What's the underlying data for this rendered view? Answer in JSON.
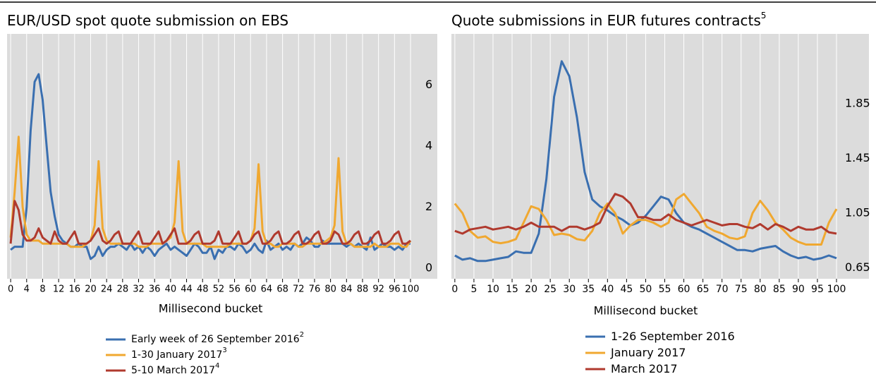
{
  "chart_data": [
    {
      "type": "line",
      "title": "EUR/USD spot quote submission on EBS",
      "x_label": "Millisecond bucket",
      "x": [
        0,
        1,
        2,
        3,
        4,
        5,
        6,
        7,
        8,
        9,
        10,
        11,
        12,
        13,
        14,
        15,
        16,
        17,
        18,
        19,
        20,
        21,
        22,
        23,
        24,
        25,
        26,
        27,
        28,
        29,
        30,
        31,
        32,
        33,
        34,
        35,
        36,
        37,
        38,
        39,
        40,
        41,
        42,
        43,
        44,
        45,
        46,
        47,
        48,
        49,
        50,
        51,
        52,
        53,
        54,
        55,
        56,
        57,
        58,
        59,
        60,
        61,
        62,
        63,
        64,
        65,
        66,
        67,
        68,
        69,
        70,
        71,
        72,
        73,
        74,
        75,
        76,
        77,
        78,
        79,
        80,
        81,
        82,
        83,
        84,
        85,
        86,
        87,
        88,
        89,
        90,
        91,
        92,
        93,
        94,
        95,
        96,
        97,
        98,
        99,
        100
      ],
      "series": [
        {
          "name": "Early week of 26 September 2016",
          "footnote": "2",
          "color": "#3a6fb0",
          "values": [
            0.6,
            0.7,
            0.7,
            0.7,
            2.0,
            4.5,
            6.1,
            6.35,
            5.5,
            4.0,
            2.5,
            1.7,
            1.1,
            0.9,
            0.8,
            0.7,
            0.7,
            0.8,
            0.7,
            0.7,
            0.3,
            0.4,
            0.7,
            0.4,
            0.6,
            0.7,
            0.7,
            0.8,
            0.7,
            0.6,
            0.8,
            0.6,
            0.7,
            0.5,
            0.7,
            0.6,
            0.4,
            0.6,
            0.7,
            0.8,
            0.6,
            0.7,
            0.6,
            0.5,
            0.4,
            0.6,
            0.8,
            0.7,
            0.5,
            0.5,
            0.7,
            0.3,
            0.6,
            0.5,
            0.7,
            0.7,
            0.6,
            0.8,
            0.7,
            0.5,
            0.6,
            0.8,
            0.6,
            0.5,
            0.9,
            0.6,
            0.7,
            0.8,
            0.6,
            0.7,
            0.6,
            0.8,
            0.7,
            0.8,
            1.0,
            0.9,
            0.7,
            0.7,
            0.9,
            0.8,
            0.8,
            0.8,
            0.8,
            0.8,
            0.7,
            0.8,
            0.7,
            0.8,
            0.7,
            0.6,
            1.0,
            0.6,
            0.7,
            0.8,
            0.7,
            0.7,
            0.6,
            0.7,
            0.6,
            0.8,
            0.8
          ]
        },
        {
          "name": "1-30 January 2017",
          "footnote": "3",
          "color": "#f0a830",
          "values": [
            1.0,
            2.5,
            4.3,
            2.0,
            1.1,
            0.9,
            0.9,
            0.9,
            0.8,
            0.8,
            0.8,
            0.8,
            0.8,
            0.8,
            0.8,
            0.7,
            0.7,
            0.7,
            0.7,
            0.8,
            0.9,
            1.4,
            3.5,
            1.3,
            0.9,
            0.8,
            0.8,
            0.8,
            0.8,
            0.8,
            0.8,
            0.8,
            0.7,
            0.7,
            0.7,
            0.8,
            0.8,
            0.8,
            0.8,
            0.9,
            1.0,
            1.5,
            3.5,
            1.2,
            0.8,
            0.8,
            0.8,
            0.8,
            0.8,
            0.7,
            0.7,
            0.7,
            0.7,
            0.7,
            0.7,
            0.8,
            0.8,
            0.8,
            0.8,
            0.8,
            0.9,
            1.3,
            3.4,
            1.2,
            0.8,
            0.8,
            0.7,
            0.7,
            0.8,
            0.8,
            0.8,
            0.8,
            0.7,
            0.7,
            0.8,
            0.8,
            0.8,
            0.8,
            0.8,
            0.9,
            1.0,
            1.4,
            3.6,
            1.2,
            0.8,
            0.8,
            0.7,
            0.7,
            0.7,
            0.7,
            0.7,
            0.8,
            0.7,
            0.7,
            0.7,
            0.8,
            0.8,
            0.8,
            0.7,
            0.7,
            0.9
          ]
        },
        {
          "name": "5-10 March 2017",
          "footnote": "4",
          "color": "#b03a2e",
          "values": [
            0.8,
            2.2,
            1.9,
            1.1,
            0.9,
            0.9,
            1.0,
            1.3,
            1.0,
            0.9,
            0.8,
            1.2,
            0.9,
            0.8,
            0.8,
            1.0,
            1.2,
            0.8,
            0.8,
            0.8,
            0.9,
            1.1,
            1.3,
            0.9,
            0.8,
            0.9,
            1.1,
            1.2,
            0.8,
            0.8,
            0.8,
            1.0,
            1.2,
            0.8,
            0.8,
            0.8,
            1.0,
            1.2,
            0.8,
            0.9,
            1.1,
            1.3,
            0.8,
            0.8,
            0.8,
            0.9,
            1.1,
            1.2,
            0.8,
            0.8,
            0.8,
            0.9,
            1.2,
            0.8,
            0.8,
            0.8,
            1.0,
            1.2,
            0.8,
            0.8,
            0.9,
            1.1,
            1.2,
            0.8,
            0.8,
            0.9,
            1.1,
            1.2,
            0.8,
            0.8,
            0.9,
            1.1,
            1.2,
            0.8,
            0.8,
            0.9,
            1.1,
            1.2,
            0.8,
            0.8,
            0.9,
            1.2,
            1.1,
            0.8,
            0.8,
            0.9,
            1.1,
            1.2,
            0.8,
            0.8,
            0.9,
            1.1,
            1.2,
            0.8,
            0.8,
            0.9,
            1.1,
            1.2,
            0.8,
            0.8,
            0.9
          ]
        }
      ],
      "xlim": [
        -0.9,
        106.7
      ],
      "xticks": [
        0,
        4,
        8,
        12,
        16,
        20,
        24,
        28,
        32,
        36,
        40,
        44,
        48,
        52,
        56,
        60,
        64,
        68,
        72,
        76,
        80,
        84,
        88,
        92,
        96,
        100
      ],
      "ylim": [
        -0.35,
        7.67
      ],
      "yticks": [
        0,
        2,
        4,
        6
      ],
      "grid": true
    },
    {
      "type": "line",
      "title": "Quote submissions in EUR futures contracts",
      "title_note": "5",
      "x_label": "Millisecond bucket",
      "x": [
        0,
        2,
        4,
        6,
        8,
        10,
        12,
        14,
        16,
        18,
        20,
        22,
        24,
        26,
        28,
        30,
        32,
        34,
        36,
        38,
        40,
        42,
        44,
        46,
        48,
        50,
        52,
        54,
        56,
        58,
        60,
        62,
        64,
        66,
        68,
        70,
        72,
        74,
        76,
        78,
        80,
        82,
        84,
        86,
        88,
        90,
        92,
        94,
        96,
        98,
        100
      ],
      "series": [
        {
          "name": "1-26 September 2016",
          "color": "#3a6fb0",
          "values": [
            0.74,
            0.71,
            0.72,
            0.7,
            0.7,
            0.71,
            0.72,
            0.73,
            0.77,
            0.76,
            0.76,
            0.9,
            1.3,
            1.9,
            2.16,
            2.05,
            1.75,
            1.35,
            1.15,
            1.1,
            1.07,
            1.03,
            1.0,
            0.96,
            0.98,
            1.03,
            1.1,
            1.17,
            1.15,
            1.05,
            0.98,
            0.95,
            0.93,
            0.9,
            0.87,
            0.84,
            0.81,
            0.78,
            0.78,
            0.77,
            0.79,
            0.8,
            0.81,
            0.77,
            0.74,
            0.72,
            0.73,
            0.71,
            0.72,
            0.74,
            0.72
          ]
        },
        {
          "name": "January 2017",
          "color": "#f0a830",
          "values": [
            1.12,
            1.05,
            0.92,
            0.87,
            0.88,
            0.84,
            0.83,
            0.84,
            0.86,
            0.98,
            1.1,
            1.08,
            1.0,
            0.89,
            0.9,
            0.89,
            0.86,
            0.85,
            0.92,
            1.05,
            1.12,
            1.05,
            0.9,
            0.96,
            1.0,
            1.0,
            0.98,
            0.95,
            0.98,
            1.15,
            1.19,
            1.12,
            1.05,
            0.95,
            0.92,
            0.9,
            0.87,
            0.86,
            0.88,
            1.05,
            1.14,
            1.07,
            0.98,
            0.93,
            0.87,
            0.84,
            0.82,
            0.82,
            0.82,
            0.98,
            1.08
          ]
        },
        {
          "name": "March 2017",
          "color": "#b03a2e",
          "values": [
            0.92,
            0.9,
            0.93,
            0.94,
            0.95,
            0.93,
            0.94,
            0.95,
            0.93,
            0.95,
            0.98,
            0.95,
            0.95,
            0.95,
            0.92,
            0.95,
            0.95,
            0.93,
            0.95,
            0.98,
            1.1,
            1.19,
            1.17,
            1.12,
            1.02,
            1.02,
            1.0,
            1.0,
            1.04,
            1.0,
            0.98,
            0.96,
            0.98,
            1.0,
            0.98,
            0.96,
            0.97,
            0.97,
            0.95,
            0.94,
            0.97,
            0.93,
            0.97,
            0.95,
            0.92,
            0.95,
            0.93,
            0.93,
            0.95,
            0.91,
            0.9
          ]
        }
      ],
      "xlim": [
        -0.9,
        108.5
      ],
      "xticks": [
        0,
        5,
        10,
        15,
        20,
        25,
        30,
        35,
        40,
        45,
        50,
        55,
        60,
        65,
        70,
        75,
        80,
        85,
        90,
        95,
        100
      ],
      "ylim": [
        0.57,
        2.36
      ],
      "yticks": [
        0.65,
        1.05,
        1.45,
        1.85
      ],
      "grid": true
    }
  ]
}
